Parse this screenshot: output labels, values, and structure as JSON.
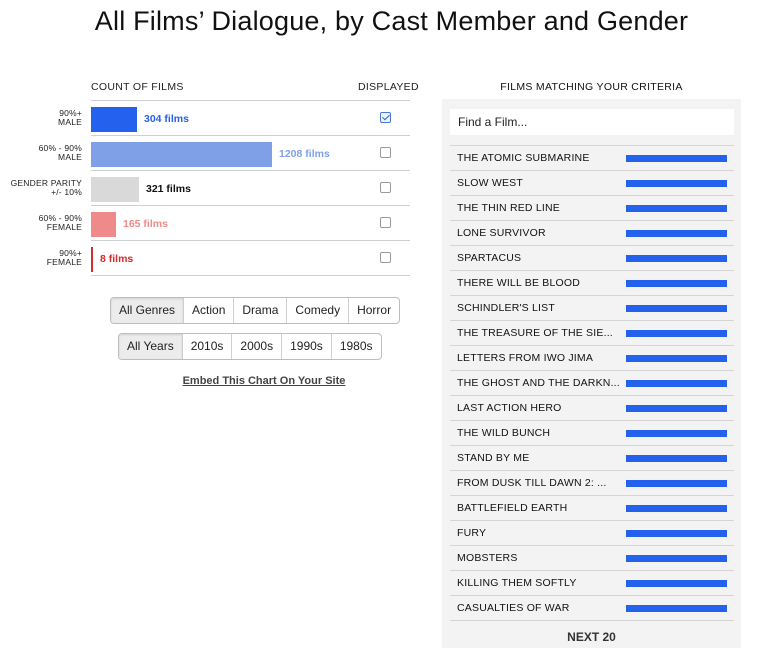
{
  "title": "All Films’ Dialogue, by Cast Member and Gender",
  "left_panel": {
    "count_header": "COUNT OF FILMS",
    "displayed_header": "DISPLAYED"
  },
  "chart_data": {
    "type": "bar",
    "orientation": "horizontal",
    "categories": [
      [
        "90%+",
        "MALE"
      ],
      [
        "60% - 90%",
        "MALE"
      ],
      [
        "GENDER PARITY",
        "+/- 10%"
      ],
      [
        "60% - 90%",
        "FEMALE"
      ],
      [
        "90%+",
        "FEMALE"
      ]
    ],
    "values": [
      304,
      1208,
      321,
      165,
      8
    ],
    "value_labels": [
      "304 films",
      "1208 films",
      "321 films",
      "165 films",
      "8 films"
    ],
    "colors": [
      "#2461ed",
      "#7f9fe6",
      "#d9d9d9",
      "#ee8a8a",
      "#d62b2b"
    ],
    "label_colors": [
      "#2461ed",
      "#7f9fe6",
      "#111111",
      "#ee8a8a",
      "#d62b2b"
    ],
    "displayed": [
      true,
      false,
      false,
      false,
      false
    ],
    "xlim": [
      0,
      1208
    ]
  },
  "genres": {
    "options": [
      "All Genres",
      "Action",
      "Drama",
      "Comedy",
      "Horror"
    ],
    "selected": "All Genres"
  },
  "years": {
    "options": [
      "All Years",
      "2010s",
      "2000s",
      "1990s",
      "1980s"
    ],
    "selected": "All Years"
  },
  "embed_link": "Embed This Chart On Your Site",
  "films_panel": {
    "header": "FILMS MATCHING YOUR CRITERIA",
    "search_placeholder": "Find a Film...",
    "bar_color": "#2461ed",
    "films": [
      {
        "title": "THE ATOMIC SUBMARINE",
        "male_share": 1.0
      },
      {
        "title": "SLOW WEST",
        "male_share": 1.0
      },
      {
        "title": "THE THIN RED LINE",
        "male_share": 1.0
      },
      {
        "title": "LONE SURVIVOR",
        "male_share": 1.0
      },
      {
        "title": "SPARTACUS",
        "male_share": 1.0
      },
      {
        "title": "THERE WILL BE BLOOD",
        "male_share": 1.0
      },
      {
        "title": "SCHINDLER'S LIST",
        "male_share": 1.0
      },
      {
        "title": "THE TREASURE OF THE SIE...",
        "male_share": 1.0
      },
      {
        "title": "LETTERS FROM IWO JIMA",
        "male_share": 1.0
      },
      {
        "title": "THE GHOST AND THE DARKN...",
        "male_share": 1.0
      },
      {
        "title": "LAST ACTION HERO",
        "male_share": 1.0
      },
      {
        "title": "THE WILD BUNCH",
        "male_share": 1.0
      },
      {
        "title": "STAND BY ME",
        "male_share": 1.0
      },
      {
        "title": "FROM DUSK TILL DAWN 2: ...",
        "male_share": 1.0
      },
      {
        "title": "BATTLEFIELD EARTH",
        "male_share": 1.0
      },
      {
        "title": "FURY",
        "male_share": 1.0
      },
      {
        "title": "MOBSTERS",
        "male_share": 1.0
      },
      {
        "title": "KILLING THEM SOFTLY",
        "male_share": 1.0
      },
      {
        "title": "CASUALTIES OF WAR",
        "male_share": 1.0
      }
    ],
    "next_label": "NEXT 20"
  }
}
